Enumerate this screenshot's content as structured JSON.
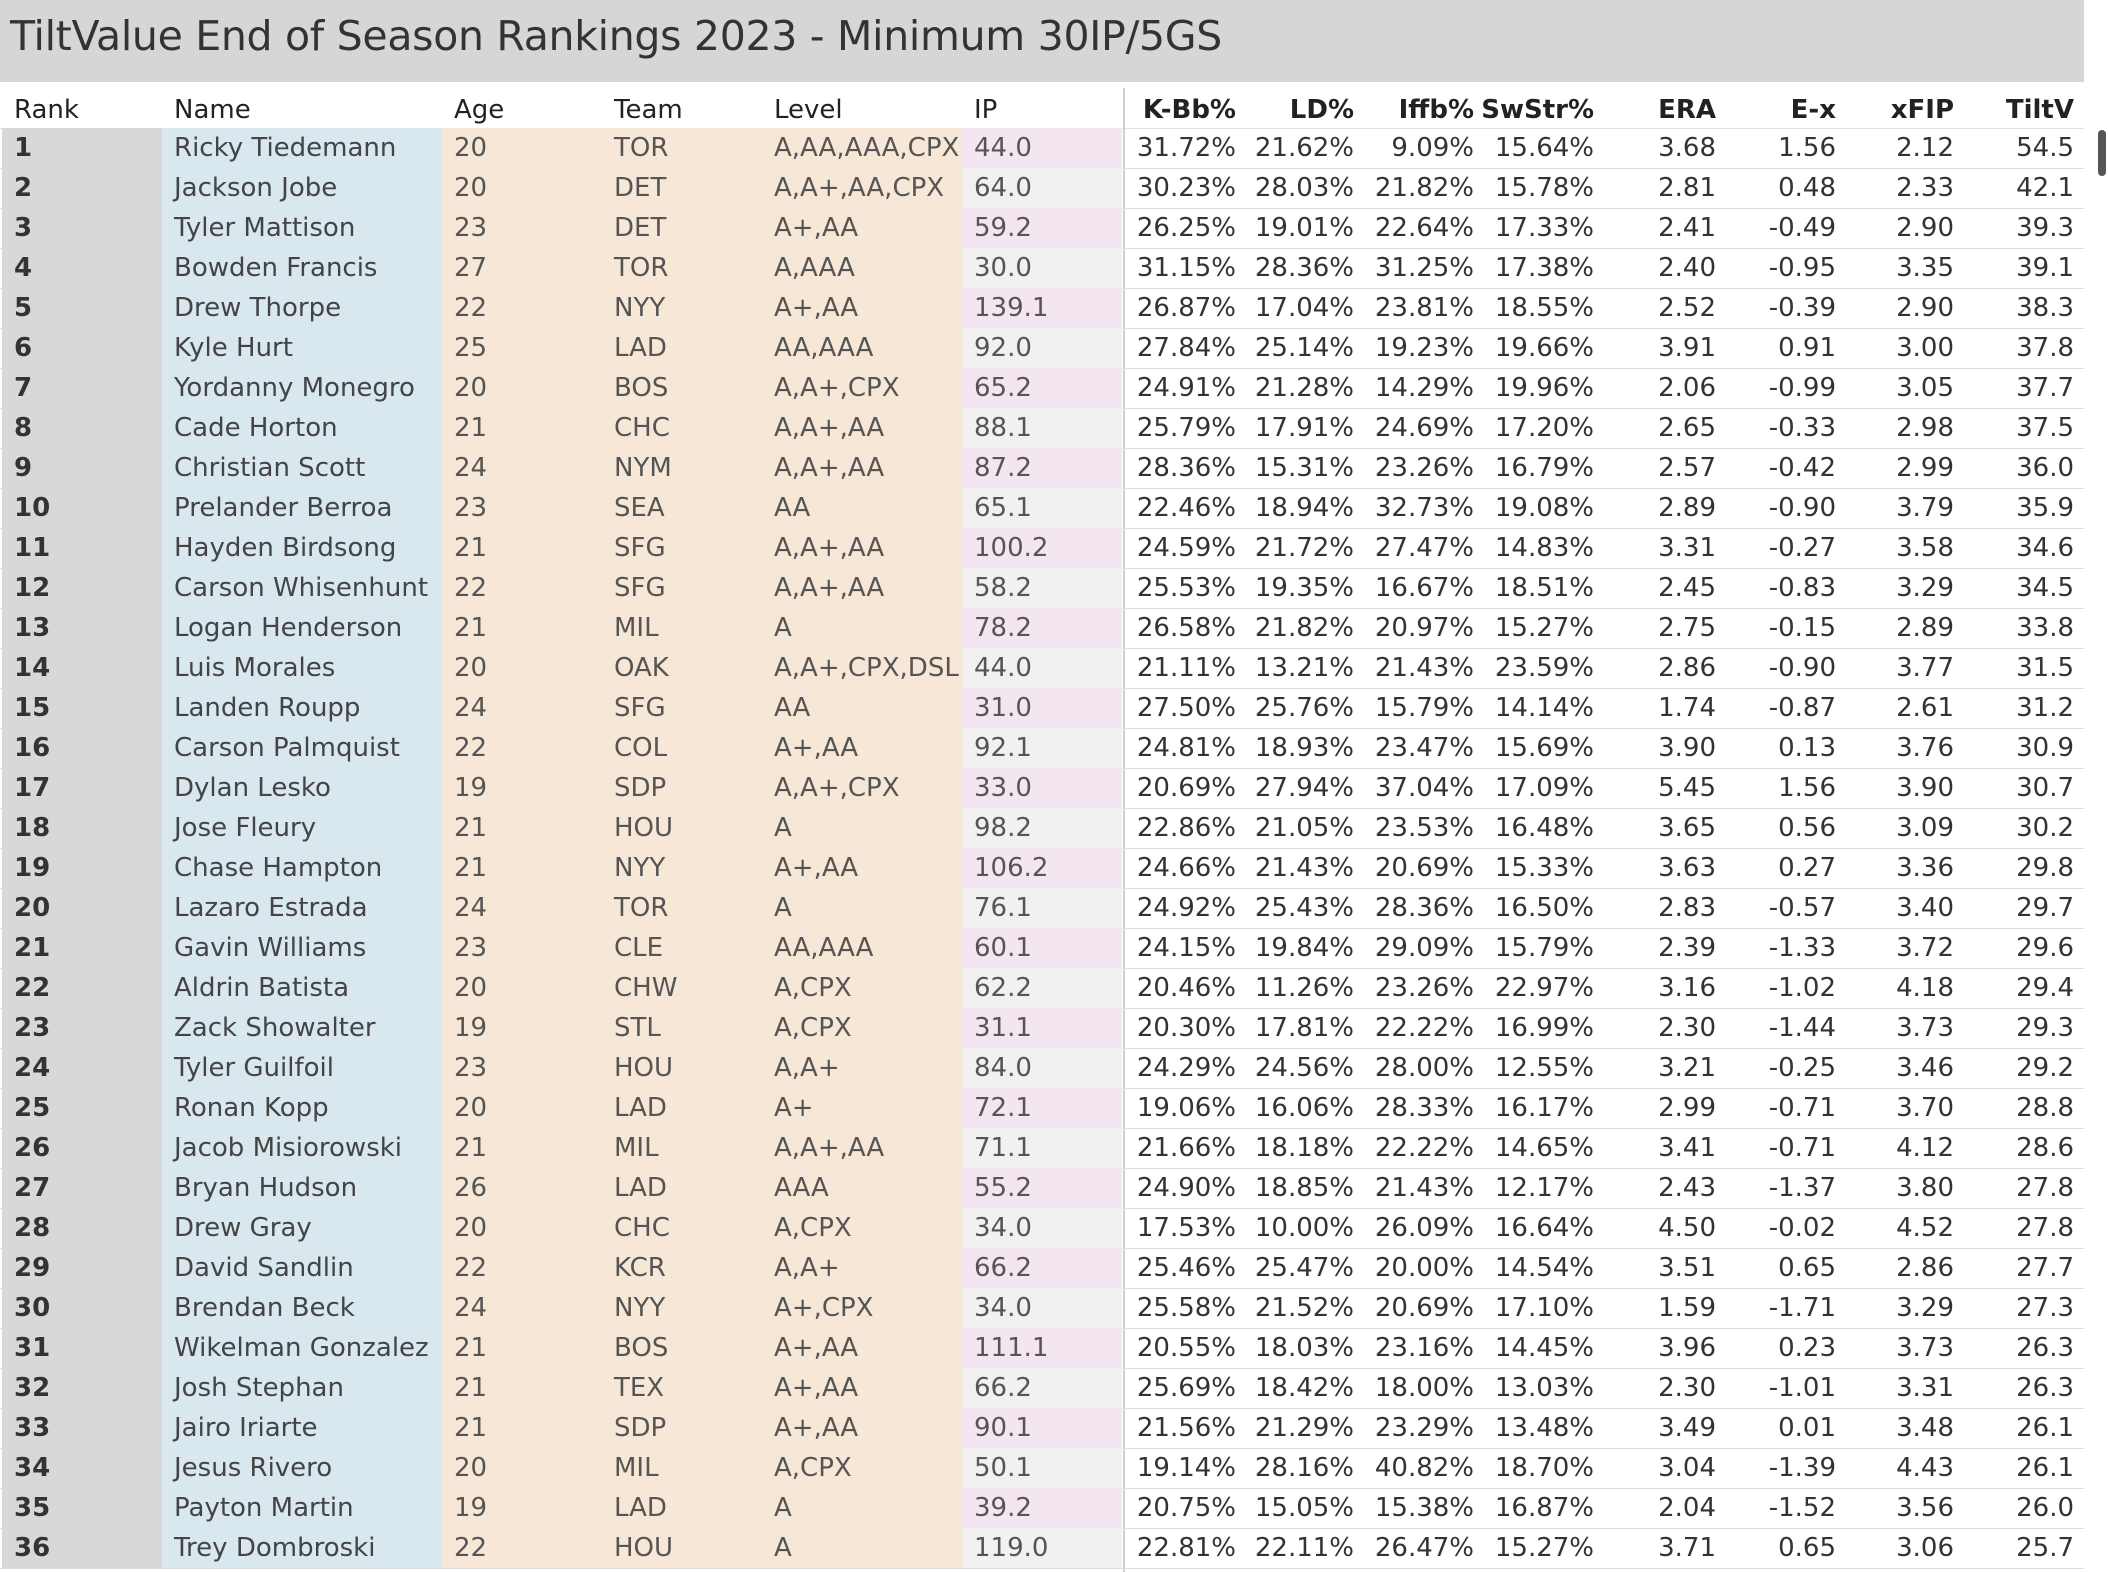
{
  "title": "TiltValue End of Season Rankings 2023 - Minimum 30IP/5GS",
  "headers": {
    "rank": "Rank",
    "name": "Name",
    "age": "Age",
    "team": "Team",
    "level": "Level",
    "ip": "IP",
    "kbb": "K-Bb%",
    "ld": "LD%",
    "iffb": "Iffb%",
    "swstr": "SwStr%",
    "era": "ERA",
    "ex": "E-x",
    "xfip": "xFIP",
    "tiltv": "TiltV"
  },
  "colors": {
    "rank_bg": "#d8d8d8",
    "name_bg": "#d9e8ee",
    "info_bg": "#f7e7d6",
    "ip_pink": "#f4e6f0",
    "ip_gray": "#f1f1f1",
    "title_bg": "#d6d6d6"
  },
  "rows": [
    [
      "1",
      "Ricky Tiedemann",
      "20",
      "TOR",
      "A,AA,AAA,CPX",
      "44.0",
      "31.72%",
      "21.62%",
      "9.09%",
      "15.64%",
      "3.68",
      "1.56",
      "2.12",
      "54.5"
    ],
    [
      "2",
      "Jackson Jobe",
      "20",
      "DET",
      "A,A+,AA,CPX",
      "64.0",
      "30.23%",
      "28.03%",
      "21.82%",
      "15.78%",
      "2.81",
      "0.48",
      "2.33",
      "42.1"
    ],
    [
      "3",
      "Tyler Mattison",
      "23",
      "DET",
      "A+,AA",
      "59.2",
      "26.25%",
      "19.01%",
      "22.64%",
      "17.33%",
      "2.41",
      "-0.49",
      "2.90",
      "39.3"
    ],
    [
      "4",
      "Bowden Francis",
      "27",
      "TOR",
      "A,AAA",
      "30.0",
      "31.15%",
      "28.36%",
      "31.25%",
      "17.38%",
      "2.40",
      "-0.95",
      "3.35",
      "39.1"
    ],
    [
      "5",
      "Drew Thorpe",
      "22",
      "NYY",
      "A+,AA",
      "139.1",
      "26.87%",
      "17.04%",
      "23.81%",
      "18.55%",
      "2.52",
      "-0.39",
      "2.90",
      "38.3"
    ],
    [
      "6",
      "Kyle Hurt",
      "25",
      "LAD",
      "AA,AAA",
      "92.0",
      "27.84%",
      "25.14%",
      "19.23%",
      "19.66%",
      "3.91",
      "0.91",
      "3.00",
      "37.8"
    ],
    [
      "7",
      "Yordanny Monegro",
      "20",
      "BOS",
      "A,A+,CPX",
      "65.2",
      "24.91%",
      "21.28%",
      "14.29%",
      "19.96%",
      "2.06",
      "-0.99",
      "3.05",
      "37.7"
    ],
    [
      "8",
      "Cade Horton",
      "21",
      "CHC",
      "A,A+,AA",
      "88.1",
      "25.79%",
      "17.91%",
      "24.69%",
      "17.20%",
      "2.65",
      "-0.33",
      "2.98",
      "37.5"
    ],
    [
      "9",
      "Christian Scott",
      "24",
      "NYM",
      "A,A+,AA",
      "87.2",
      "28.36%",
      "15.31%",
      "23.26%",
      "16.79%",
      "2.57",
      "-0.42",
      "2.99",
      "36.0"
    ],
    [
      "10",
      "Prelander Berroa",
      "23",
      "SEA",
      "AA",
      "65.1",
      "22.46%",
      "18.94%",
      "32.73%",
      "19.08%",
      "2.89",
      "-0.90",
      "3.79",
      "35.9"
    ],
    [
      "11",
      "Hayden Birdsong",
      "21",
      "SFG",
      "A,A+,AA",
      "100.2",
      "24.59%",
      "21.72%",
      "27.47%",
      "14.83%",
      "3.31",
      "-0.27",
      "3.58",
      "34.6"
    ],
    [
      "12",
      "Carson Whisenhunt",
      "22",
      "SFG",
      "A,A+,AA",
      "58.2",
      "25.53%",
      "19.35%",
      "16.67%",
      "18.51%",
      "2.45",
      "-0.83",
      "3.29",
      "34.5"
    ],
    [
      "13",
      "Logan Henderson",
      "21",
      "MIL",
      "A",
      "78.2",
      "26.58%",
      "21.82%",
      "20.97%",
      "15.27%",
      "2.75",
      "-0.15",
      "2.89",
      "33.8"
    ],
    [
      "14",
      "Luis Morales",
      "20",
      "OAK",
      "A,A+,CPX,DSL",
      "44.0",
      "21.11%",
      "13.21%",
      "21.43%",
      "23.59%",
      "2.86",
      "-0.90",
      "3.77",
      "31.5"
    ],
    [
      "15",
      "Landen Roupp",
      "24",
      "SFG",
      "AA",
      "31.0",
      "27.50%",
      "25.76%",
      "15.79%",
      "14.14%",
      "1.74",
      "-0.87",
      "2.61",
      "31.2"
    ],
    [
      "16",
      "Carson Palmquist",
      "22",
      "COL",
      "A+,AA",
      "92.1",
      "24.81%",
      "18.93%",
      "23.47%",
      "15.69%",
      "3.90",
      "0.13",
      "3.76",
      "30.9"
    ],
    [
      "17",
      "Dylan Lesko",
      "19",
      "SDP",
      "A,A+,CPX",
      "33.0",
      "20.69%",
      "27.94%",
      "37.04%",
      "17.09%",
      "5.45",
      "1.56",
      "3.90",
      "30.7"
    ],
    [
      "18",
      "Jose Fleury",
      "21",
      "HOU",
      "A",
      "98.2",
      "22.86%",
      "21.05%",
      "23.53%",
      "16.48%",
      "3.65",
      "0.56",
      "3.09",
      "30.2"
    ],
    [
      "19",
      "Chase Hampton",
      "21",
      "NYY",
      "A+,AA",
      "106.2",
      "24.66%",
      "21.43%",
      "20.69%",
      "15.33%",
      "3.63",
      "0.27",
      "3.36",
      "29.8"
    ],
    [
      "20",
      "Lazaro Estrada",
      "24",
      "TOR",
      "A",
      "76.1",
      "24.92%",
      "25.43%",
      "28.36%",
      "16.50%",
      "2.83",
      "-0.57",
      "3.40",
      "29.7"
    ],
    [
      "21",
      "Gavin Williams",
      "23",
      "CLE",
      "AA,AAA",
      "60.1",
      "24.15%",
      "19.84%",
      "29.09%",
      "15.79%",
      "2.39",
      "-1.33",
      "3.72",
      "29.6"
    ],
    [
      "22",
      "Aldrin Batista",
      "20",
      "CHW",
      "A,CPX",
      "62.2",
      "20.46%",
      "11.26%",
      "23.26%",
      "22.97%",
      "3.16",
      "-1.02",
      "4.18",
      "29.4"
    ],
    [
      "23",
      "Zack Showalter",
      "19",
      "STL",
      "A,CPX",
      "31.1",
      "20.30%",
      "17.81%",
      "22.22%",
      "16.99%",
      "2.30",
      "-1.44",
      "3.73",
      "29.3"
    ],
    [
      "24",
      "Tyler Guilfoil",
      "23",
      "HOU",
      "A,A+",
      "84.0",
      "24.29%",
      "24.56%",
      "28.00%",
      "12.55%",
      "3.21",
      "-0.25",
      "3.46",
      "29.2"
    ],
    [
      "25",
      "Ronan Kopp",
      "20",
      "LAD",
      "A+",
      "72.1",
      "19.06%",
      "16.06%",
      "28.33%",
      "16.17%",
      "2.99",
      "-0.71",
      "3.70",
      "28.8"
    ],
    [
      "26",
      "Jacob Misiorowski",
      "21",
      "MIL",
      "A,A+,AA",
      "71.1",
      "21.66%",
      "18.18%",
      "22.22%",
      "14.65%",
      "3.41",
      "-0.71",
      "4.12",
      "28.6"
    ],
    [
      "27",
      "Bryan Hudson",
      "26",
      "LAD",
      "AAA",
      "55.2",
      "24.90%",
      "18.85%",
      "21.43%",
      "12.17%",
      "2.43",
      "-1.37",
      "3.80",
      "27.8"
    ],
    [
      "28",
      "Drew Gray",
      "20",
      "CHC",
      "A,CPX",
      "34.0",
      "17.53%",
      "10.00%",
      "26.09%",
      "16.64%",
      "4.50",
      "-0.02",
      "4.52",
      "27.8"
    ],
    [
      "29",
      "David Sandlin",
      "22",
      "KCR",
      "A,A+",
      "66.2",
      "25.46%",
      "25.47%",
      "20.00%",
      "14.54%",
      "3.51",
      "0.65",
      "2.86",
      "27.7"
    ],
    [
      "30",
      "Brendan Beck",
      "24",
      "NYY",
      "A+,CPX",
      "34.0",
      "25.58%",
      "21.52%",
      "20.69%",
      "17.10%",
      "1.59",
      "-1.71",
      "3.29",
      "27.3"
    ],
    [
      "31",
      "Wikelman Gonzalez",
      "21",
      "BOS",
      "A+,AA",
      "111.1",
      "20.55%",
      "18.03%",
      "23.16%",
      "14.45%",
      "3.96",
      "0.23",
      "3.73",
      "26.3"
    ],
    [
      "32",
      "Josh Stephan",
      "21",
      "TEX",
      "A+,AA",
      "66.2",
      "25.69%",
      "18.42%",
      "18.00%",
      "13.03%",
      "2.30",
      "-1.01",
      "3.31",
      "26.3"
    ],
    [
      "33",
      "Jairo Iriarte",
      "21",
      "SDP",
      "A+,AA",
      "90.1",
      "21.56%",
      "21.29%",
      "23.29%",
      "13.48%",
      "3.49",
      "0.01",
      "3.48",
      "26.1"
    ],
    [
      "34",
      "Jesus Rivero",
      "20",
      "MIL",
      "A,CPX",
      "50.1",
      "19.14%",
      "28.16%",
      "40.82%",
      "18.70%",
      "3.04",
      "-1.39",
      "4.43",
      "26.1"
    ],
    [
      "35",
      "Payton Martin",
      "19",
      "LAD",
      "A",
      "39.2",
      "20.75%",
      "15.05%",
      "15.38%",
      "16.87%",
      "2.04",
      "-1.52",
      "3.56",
      "26.0"
    ],
    [
      "36",
      "Trey Dombroski",
      "22",
      "HOU",
      "A",
      "119.0",
      "22.81%",
      "22.11%",
      "26.47%",
      "15.27%",
      "3.71",
      "0.65",
      "3.06",
      "25.7"
    ]
  ]
}
